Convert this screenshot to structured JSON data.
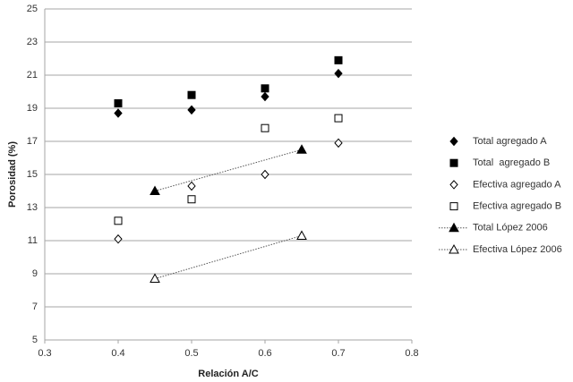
{
  "chart_data": {
    "type": "scatter",
    "x_label": "Relación A/C",
    "y_label": "Porosidad (%)",
    "xlim": [
      0.3,
      0.8
    ],
    "xticks": [
      0.3,
      0.4,
      0.5,
      0.6,
      0.7,
      0.8
    ],
    "ylim": [
      5,
      25
    ],
    "yticks": [
      5,
      7,
      9,
      11,
      13,
      15,
      17,
      19,
      21,
      23,
      25
    ],
    "grid": true,
    "legend": "right",
    "series": [
      {
        "name": "Total agregado A",
        "color": "#000000",
        "marker": "diamond",
        "filled": true,
        "x": [
          0.4,
          0.5,
          0.6,
          0.7
        ],
        "values": [
          18.7,
          18.9,
          19.7,
          21.1
        ]
      },
      {
        "name": "Total  agregado B",
        "color": "#000000",
        "marker": "square",
        "filled": true,
        "x": [
          0.4,
          0.5,
          0.6,
          0.7
        ],
        "values": [
          19.3,
          19.8,
          20.2,
          21.9
        ]
      },
      {
        "name": "Efectiva agregado A",
        "color": "#000000",
        "marker": "diamond",
        "filled": false,
        "x": [
          0.4,
          0.5,
          0.6,
          0.7
        ],
        "values": [
          11.1,
          14.3,
          15.0,
          16.9
        ]
      },
      {
        "name": "Efectiva agregado B",
        "color": "#000000",
        "marker": "square",
        "filled": false,
        "x": [
          0.4,
          0.5,
          0.6,
          0.7
        ],
        "values": [
          12.2,
          13.5,
          17.8,
          18.4
        ]
      },
      {
        "name": "Total López 2006",
        "color": "#000000",
        "marker": "triangle",
        "filled": true,
        "line": "dotted",
        "x": [
          0.45,
          0.65
        ],
        "values": [
          14.0,
          16.5
        ]
      },
      {
        "name": "Efectiva López 2006",
        "color": "#000000",
        "marker": "triangle",
        "filled": false,
        "line": "dotted",
        "x": [
          0.45,
          0.65
        ],
        "values": [
          8.7,
          11.3
        ]
      }
    ]
  }
}
